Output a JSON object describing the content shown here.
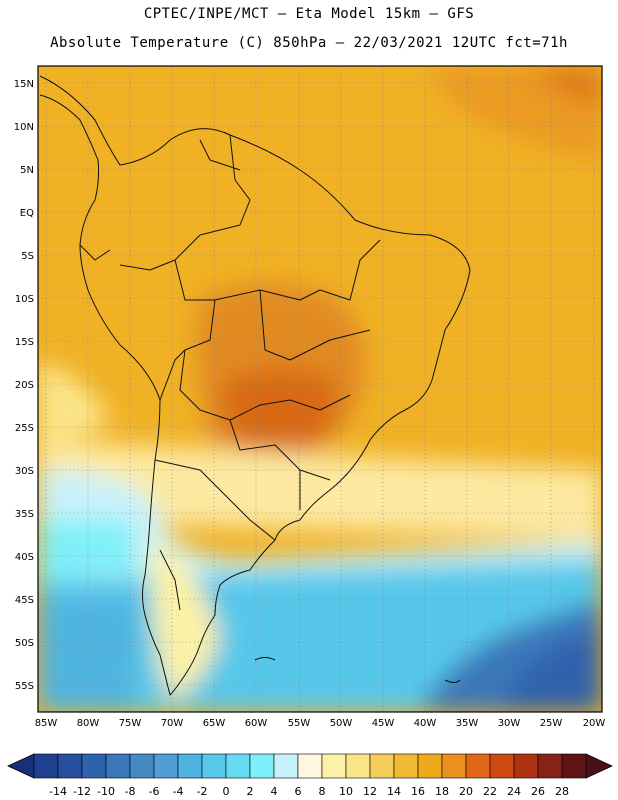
{
  "header": {
    "line1": "CPTEC/INPE/MCT –  Eta Model 15km – GFS",
    "line2": "Absolute Temperature (C) 850hPa – 22/03/2021 12UTC fct=71h"
  },
  "map": {
    "lat_labels": [
      "15N",
      "10N",
      "5N",
      "EQ",
      "5S",
      "10S",
      "15S",
      "20S",
      "25S",
      "30S",
      "35S",
      "40S",
      "45S",
      "50S",
      "55S"
    ],
    "lon_labels": [
      "85W",
      "80W",
      "75W",
      "70W",
      "65W",
      "60W",
      "55W",
      "50W",
      "45W",
      "40W",
      "35W",
      "30W",
      "25W",
      "20W"
    ],
    "lat_range": [
      16.5,
      -58.5
    ],
    "lon_range": [
      -86,
      -19
    ]
  },
  "colorbar": {
    "labels": [
      "-14",
      "-12",
      "-10",
      "-8",
      "-6",
      "-4",
      "-2",
      "0",
      "2",
      "4",
      "6",
      "8",
      "10",
      "12",
      "14",
      "16",
      "18",
      "20",
      "22",
      "24",
      "26",
      "28"
    ],
    "colors": [
      "#1f3f8f",
      "#274f9f",
      "#2f62ad",
      "#3a77bb",
      "#4689c5",
      "#4f9fd4",
      "#4fb4e0",
      "#57c7ea",
      "#67dbf1",
      "#7ef0f9",
      "#c8f2fb",
      "#fff7e0",
      "#fdf1a6",
      "#fbe589",
      "#f5cd5a",
      "#f1bb36",
      "#efaa1c",
      "#eb9020",
      "#e0661a",
      "#cc4912",
      "#ad3212",
      "#862216",
      "#5f1414"
    ]
  }
}
